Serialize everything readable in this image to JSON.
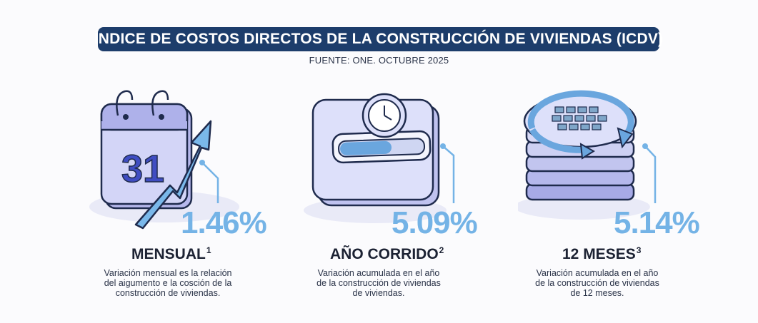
{
  "header": {
    "title": "ÍNDICE DE COSTOS DIRECTOS DE LA CONSTRUCCIÓN DE VIVIENDAS (ICDV)",
    "source": "FUENTE: ONE. OCTUBRE 2025"
  },
  "colors": {
    "title_bg": "#1d3d6b",
    "accent": "#74b3e6",
    "illustration_fill": "#c7c9f1",
    "outline": "#1f2b4d"
  },
  "cards": [
    {
      "icon": "calendar-growth-icon",
      "calendar_day": "31",
      "percent": "1.46%",
      "label": "MENSUAL",
      "note": "1",
      "description": [
        "Variación mensual es la relación",
        "del aigumento e la cosción de la",
        "construcción de viviendas."
      ]
    },
    {
      "icon": "clock-progress-icon",
      "percent": "5.09%",
      "label": "AÑO CORRIDO",
      "note": "2",
      "description": [
        "Variación acumulada en el año",
        "de la construcción de viviendas",
        "de viviendas."
      ]
    },
    {
      "icon": "cycle-calculator-icon",
      "percent": "5.14%",
      "label": "12 MESES",
      "note": "3",
      "description": [
        "Variación acumulada en el año",
        "de la construcción de viviendas",
        "de 12 meses."
      ]
    }
  ]
}
